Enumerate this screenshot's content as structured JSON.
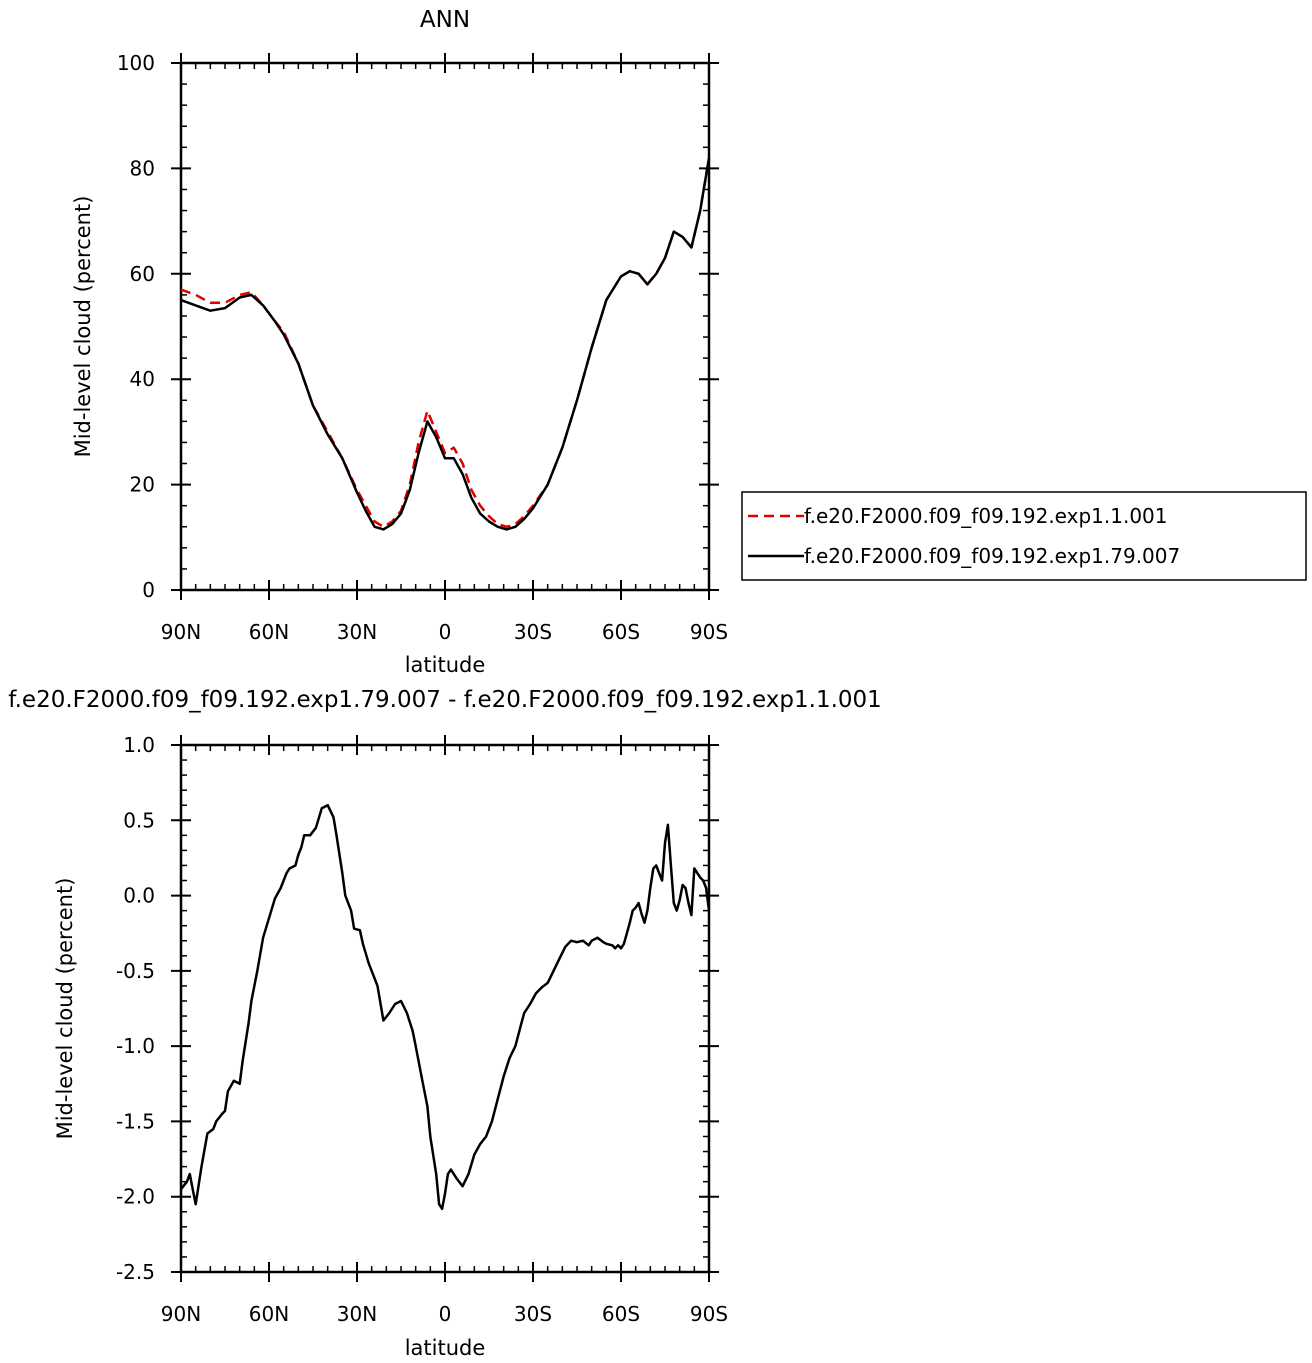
{
  "chart_data": [
    {
      "type": "line",
      "title": "ANN",
      "xlabel": "latitude",
      "ylabel": "Mid-level cloud (percent)",
      "xlim": [
        90,
        -90
      ],
      "ylim": [
        0,
        100
      ],
      "x_ticks": [
        90,
        60,
        30,
        0,
        -30,
        -60,
        -90
      ],
      "x_tick_labels": [
        "90N",
        "60N",
        "30N",
        "0",
        "30S",
        "60S",
        "90S"
      ],
      "y_ticks": [
        0,
        20,
        40,
        60,
        80,
        100
      ],
      "y_tick_labels": [
        "0",
        "20",
        "40",
        "60",
        "80",
        "100"
      ],
      "grid": false,
      "legend": "right",
      "series": [
        {
          "name": "f.e20.F2000.f09_f09.192.exp1.1.001",
          "color": "#e00000",
          "style": "dashed",
          "x": [
            90,
            85,
            80,
            75,
            70,
            66,
            62,
            58,
            55,
            50,
            45,
            40,
            35,
            30,
            27,
            24,
            21,
            18,
            15,
            12,
            9,
            6,
            3,
            0,
            -3,
            -6,
            -9,
            -12,
            -15,
            -18,
            -21,
            -24,
            -27,
            -30,
            -35,
            -40,
            -45,
            -50,
            -55,
            -60,
            -63,
            -66,
            -69,
            -72,
            -75,
            -78,
            -81,
            -84,
            -87,
            -90
          ],
          "y": [
            57,
            56,
            54.5,
            54.5,
            56,
            56.5,
            54,
            51,
            49,
            43,
            35,
            30,
            25,
            19,
            16,
            13,
            12,
            13,
            15,
            20,
            28,
            34,
            30,
            26,
            27,
            24,
            19,
            16,
            14,
            12.5,
            12,
            12.5,
            14,
            16,
            20,
            27,
            36,
            46,
            55,
            59.5,
            60.5,
            60,
            58,
            60,
            63,
            68,
            67,
            65,
            72,
            82
          ]
        },
        {
          "name": "f.e20.F2000.f09_f09.192.exp1.79.007",
          "color": "#000000",
          "style": "solid",
          "x": [
            90,
            85,
            80,
            75,
            70,
            66,
            62,
            58,
            55,
            50,
            45,
            40,
            35,
            30,
            27,
            24,
            21,
            18,
            15,
            12,
            9,
            6,
            3,
            0,
            -3,
            -6,
            -9,
            -12,
            -15,
            -18,
            -21,
            -24,
            -27,
            -30,
            -35,
            -40,
            -45,
            -50,
            -55,
            -60,
            -63,
            -66,
            -69,
            -72,
            -75,
            -78,
            -81,
            -84,
            -87,
            -90
          ],
          "y": [
            55,
            54,
            53,
            53.5,
            55.5,
            56,
            54,
            51,
            48.5,
            43,
            35,
            29.5,
            25,
            18.5,
            15,
            12,
            11.5,
            12.5,
            14.5,
            19,
            26,
            32,
            29,
            25,
            25,
            22,
            17.5,
            14.5,
            13,
            12,
            11.5,
            12,
            13.5,
            15.5,
            20,
            27,
            36,
            46,
            55,
            59.5,
            60.5,
            60,
            58,
            60,
            63,
            68,
            67,
            65,
            72,
            82
          ]
        }
      ]
    },
    {
      "type": "line",
      "title": "f.e20.F2000.f09_f09.192.exp1.79.007 - f.e20.F2000.f09_f09.192.exp1.1.001",
      "xlabel": "latitude",
      "ylabel": "Mid-level cloud (percent)",
      "xlim": [
        90,
        -90
      ],
      "ylim": [
        -2.5,
        1.0
      ],
      "x_ticks": [
        90,
        60,
        30,
        0,
        -30,
        -60,
        -90
      ],
      "x_tick_labels": [
        "90N",
        "60N",
        "30N",
        "0",
        "30S",
        "60S",
        "90S"
      ],
      "y_ticks": [
        -2.5,
        -2.0,
        -1.5,
        -1.0,
        -0.5,
        0.0,
        0.5,
        1.0
      ],
      "y_tick_labels": [
        "-2.5",
        "-2.0",
        "-1.5",
        "-1.0",
        "-0.5",
        "0.0",
        "0.5",
        "1.0"
      ],
      "grid": false,
      "series": [
        {
          "color": "#000000",
          "style": "solid",
          "x": [
            90,
            88,
            87,
            86,
            85,
            83,
            81,
            79,
            78,
            76,
            75,
            74,
            72,
            70,
            69,
            67,
            66,
            64,
            62,
            60,
            58,
            56,
            54,
            53,
            51,
            50,
            49,
            48,
            46,
            44,
            42,
            40,
            38,
            37,
            35,
            34,
            32,
            31,
            29,
            28,
            26,
            25,
            23,
            21,
            19,
            17,
            15,
            13,
            11,
            10,
            9,
            8,
            6,
            5,
            3,
            2,
            1,
            0,
            -1,
            -2,
            -4,
            -6,
            -8,
            -10,
            -12,
            -14,
            -16,
            -18,
            -20,
            -22,
            -24,
            -26,
            -27,
            -29,
            -31,
            -33,
            -35,
            -37,
            -39,
            -41,
            -43,
            -45,
            -47,
            -49,
            -50,
            -52,
            -54,
            -55,
            -57,
            -58,
            -59,
            -60,
            -61,
            -62,
            -63,
            -64,
            -65,
            -66,
            -67,
            -68,
            -69,
            -70,
            -71,
            -72,
            -73,
            -74,
            -75,
            -76,
            -77,
            -78,
            -79,
            -80,
            -81,
            -82,
            -83,
            -84,
            -85,
            -86,
            -87,
            -88,
            -89,
            -90
          ],
          "y": [
            -1.95,
            -1.9,
            -1.85,
            -1.95,
            -2.05,
            -1.8,
            -1.58,
            -1.55,
            -1.5,
            -1.45,
            -1.43,
            -1.3,
            -1.23,
            -1.25,
            -1.1,
            -0.85,
            -0.7,
            -0.5,
            -0.28,
            -0.15,
            -0.02,
            0.05,
            0.15,
            0.18,
            0.2,
            0.27,
            0.32,
            0.4,
            0.4,
            0.45,
            0.58,
            0.6,
            0.52,
            0.4,
            0.15,
            0.0,
            -0.1,
            -0.22,
            -0.23,
            -0.32,
            -0.45,
            -0.5,
            -0.6,
            -0.83,
            -0.78,
            -0.72,
            -0.7,
            -0.78,
            -0.9,
            -1.0,
            -1.1,
            -1.2,
            -1.4,
            -1.6,
            -1.85,
            -2.05,
            -2.08,
            -1.98,
            -1.85,
            -1.82,
            -1.88,
            -1.93,
            -1.85,
            -1.72,
            -1.65,
            -1.6,
            -1.5,
            -1.35,
            -1.2,
            -1.08,
            -1.0,
            -0.85,
            -0.78,
            -0.72,
            -0.65,
            -0.61,
            -0.58,
            -0.5,
            -0.42,
            -0.34,
            -0.3,
            -0.31,
            -0.3,
            -0.33,
            -0.3,
            -0.28,
            -0.31,
            -0.32,
            -0.33,
            -0.35,
            -0.33,
            -0.35,
            -0.32,
            -0.25,
            -0.18,
            -0.1,
            -0.08,
            -0.05,
            -0.12,
            -0.18,
            -0.1,
            0.05,
            0.18,
            0.2,
            0.15,
            0.1,
            0.35,
            0.47,
            0.2,
            -0.05,
            -0.1,
            -0.03,
            0.07,
            0.05,
            -0.05,
            -0.13,
            0.18,
            0.15,
            0.12,
            0.1,
            0.05,
            -0.1
          ]
        }
      ]
    }
  ]
}
